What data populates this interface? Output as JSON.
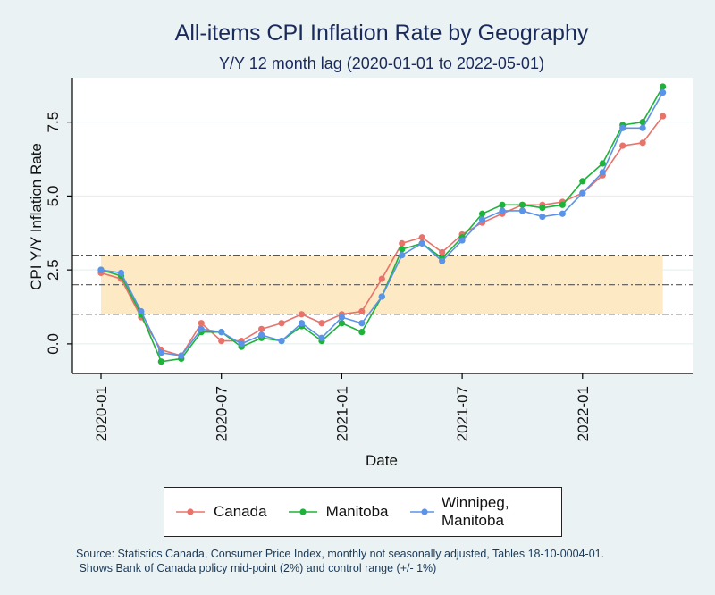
{
  "chart_data": {
    "type": "line",
    "title": "All-items CPI Inflation Rate by Geography",
    "subtitle": "Y/Y 12 month lag (2020-01-01 to 2022-05-01)",
    "xlabel": "Date",
    "ylabel": "CPI Y/Y Inflation Rate",
    "x": [
      "2020-01",
      "2020-02",
      "2020-03",
      "2020-04",
      "2020-05",
      "2020-06",
      "2020-07",
      "2020-08",
      "2020-09",
      "2020-10",
      "2020-11",
      "2020-12",
      "2021-01",
      "2021-02",
      "2021-03",
      "2021-04",
      "2021-05",
      "2021-06",
      "2021-07",
      "2021-08",
      "2021-09",
      "2021-10",
      "2021-11",
      "2021-12",
      "2022-01",
      "2022-02",
      "2022-03",
      "2022-04",
      "2022-05"
    ],
    "x_ticks": [
      "2020-01",
      "2020-07",
      "2021-01",
      "2021-07",
      "2022-01"
    ],
    "y_ticks": [
      "0.0",
      "2.5",
      "5.0",
      "7.5"
    ],
    "ylim": [
      -1.0,
      9.0
    ],
    "grid": true,
    "legend_position": "bottom",
    "series": [
      {
        "name": "Canada",
        "color": "#e8736b",
        "values": [
          2.4,
          2.2,
          0.9,
          -0.2,
          -0.4,
          0.7,
          0.1,
          0.1,
          0.5,
          0.7,
          1.0,
          0.7,
          1.0,
          1.1,
          2.2,
          3.4,
          3.6,
          3.1,
          3.7,
          4.1,
          4.4,
          4.7,
          4.7,
          4.8,
          5.1,
          5.7,
          6.7,
          6.8,
          7.7
        ]
      },
      {
        "name": "Manitoba",
        "color": "#1db33a",
        "values": [
          2.5,
          2.3,
          1.0,
          -0.6,
          -0.5,
          0.4,
          0.4,
          -0.1,
          0.2,
          0.1,
          0.6,
          0.1,
          0.7,
          0.4,
          1.6,
          3.2,
          3.4,
          2.9,
          3.6,
          4.4,
          4.7,
          4.7,
          4.6,
          4.7,
          5.5,
          6.1,
          7.4,
          7.5,
          8.7
        ]
      },
      {
        "name": "Winnipeg, Manitoba",
        "color": "#5b93e8",
        "values": [
          2.5,
          2.4,
          1.1,
          -0.3,
          -0.4,
          0.5,
          0.4,
          0.0,
          0.3,
          0.1,
          0.7,
          0.2,
          0.9,
          0.7,
          1.6,
          3.0,
          3.4,
          2.8,
          3.5,
          4.2,
          4.5,
          4.5,
          4.3,
          4.4,
          5.1,
          5.8,
          7.3,
          7.3,
          8.5
        ]
      }
    ],
    "reference_lines": {
      "midpoint": 2.0,
      "control_range": [
        1.0,
        3.0
      ]
    }
  },
  "source_note": {
    "line1": "Source: Statistics Canada, Consumer Price Index, monthly not seasonally adjusted, Tables 18-10-0004-01.",
    "line2": " Shows Bank of Canada policy mid-point (2%) and control range (+/- 1%)"
  },
  "colors": {
    "background": "#eaf2f3",
    "plot_background": "#ffffff",
    "band": "#fde9c4",
    "title": "#1a2a5a"
  }
}
